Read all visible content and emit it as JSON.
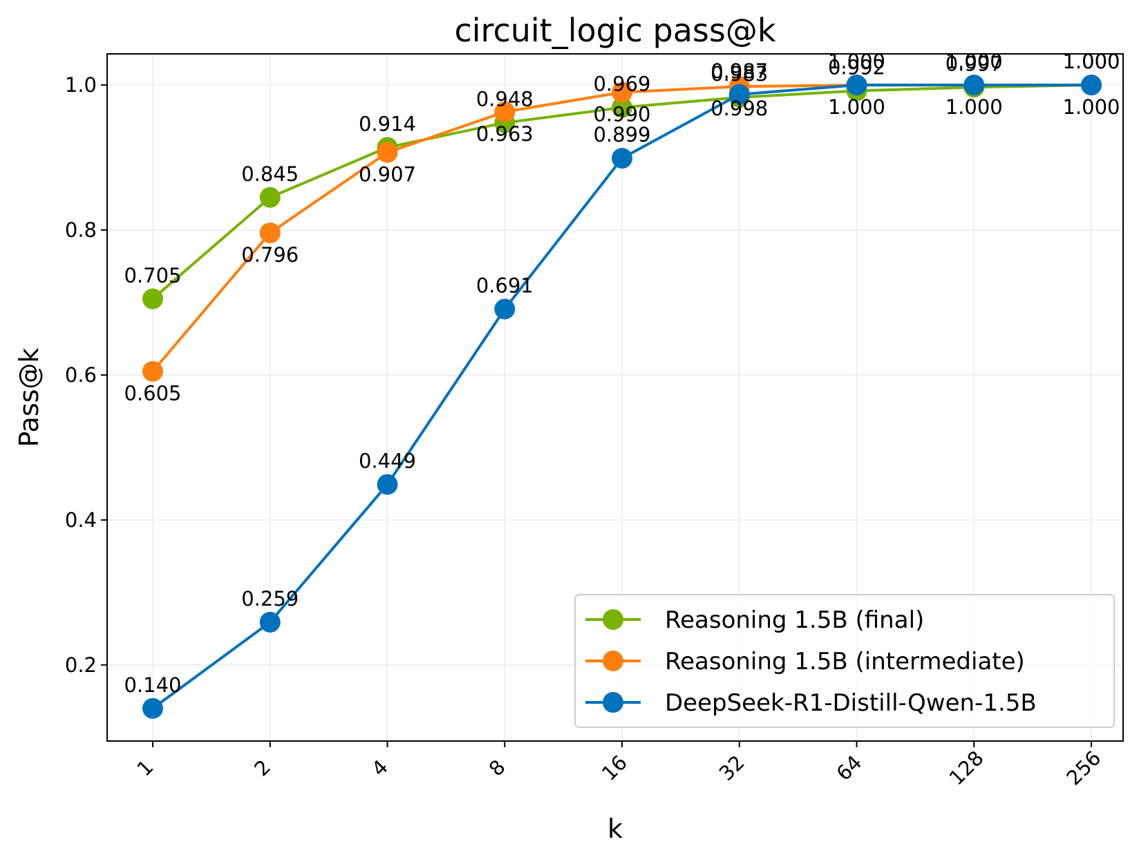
{
  "chart_data": {
    "type": "line",
    "title": "circuit_logic pass@k",
    "xlabel": "k",
    "ylabel": "Pass@k",
    "x_scale": "log2",
    "categories": [
      "1",
      "2",
      "4",
      "8",
      "16",
      "32",
      "64",
      "128",
      "256"
    ],
    "yticks": [
      "0.2",
      "0.4",
      "0.6",
      "0.8",
      "1.0"
    ],
    "ylim": [
      0.095,
      1.043
    ],
    "grid": true,
    "legend_position": "lower-right",
    "series": [
      {
        "name": "Reasoning 1.5B (final)",
        "color": "#77b300",
        "values": [
          0.705,
          0.845,
          0.914,
          0.948,
          0.969,
          0.983,
          0.992,
          0.997,
          1.0
        ],
        "labels": [
          "0.705",
          "0.845",
          "0.914",
          "0.948",
          "0.969",
          "0.983",
          "0.992",
          "0.997",
          "1.000"
        ],
        "label_placement": "above"
      },
      {
        "name": "Reasoning 1.5B (intermediate)",
        "color": "#ff7f0e",
        "values": [
          0.605,
          0.796,
          0.907,
          0.963,
          0.99,
          0.998,
          1.0,
          1.0,
          1.0
        ],
        "labels": [
          "0.605",
          "0.796",
          "0.907",
          "0.963",
          "0.990",
          "0.998",
          "1.000",
          "1.000",
          "1.000"
        ],
        "label_placement": "below"
      },
      {
        "name": "DeepSeek-R1-Distill-Qwen-1.5B",
        "color": "#0072bd",
        "values": [
          0.14,
          0.259,
          0.449,
          0.691,
          0.899,
          0.987,
          1.0,
          1.0,
          1.0
        ],
        "labels": [
          "0.140",
          "0.259",
          "0.449",
          "0.691",
          "0.899",
          "0.987",
          "1.000",
          "1.000",
          "1.000"
        ],
        "label_placement": "above"
      }
    ]
  }
}
